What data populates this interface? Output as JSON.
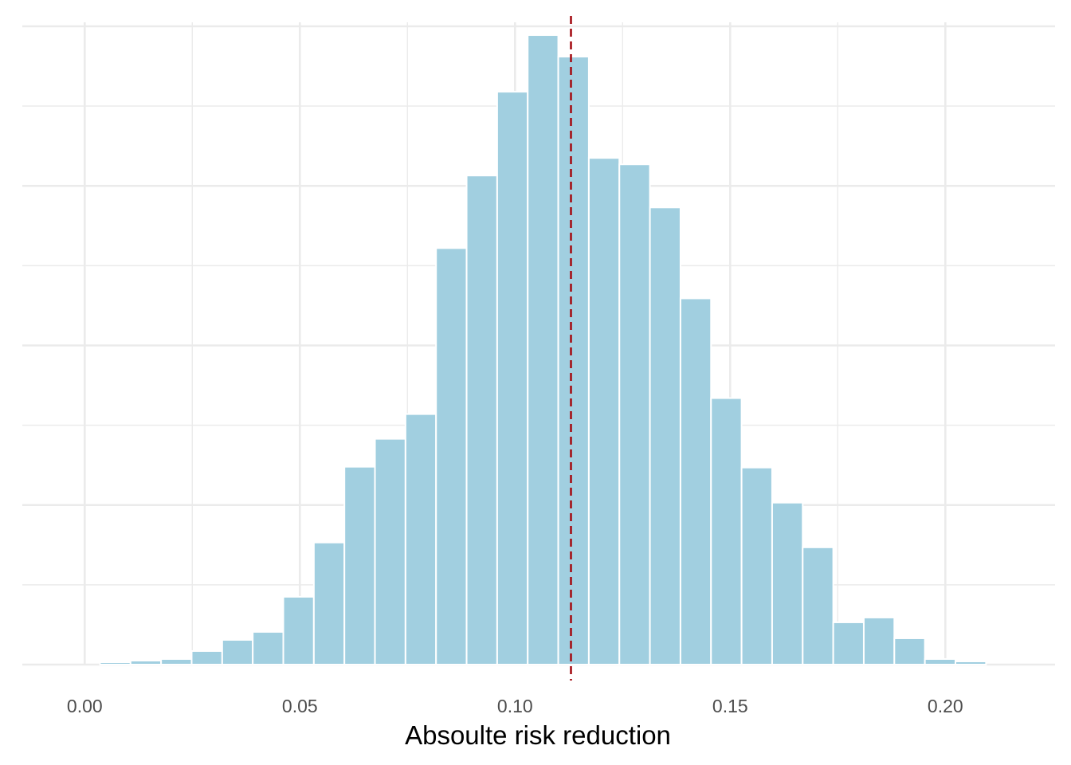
{
  "chart_data": {
    "type": "bar",
    "title": "",
    "xlabel": "Absoulte risk reduction",
    "ylabel": "",
    "grid": true,
    "xlim": [
      -0.0145,
      0.2255
    ],
    "ylim": [
      0,
      0.0805
    ],
    "x_ticks": [
      0.0,
      0.05,
      0.1,
      0.15,
      0.2
    ],
    "x_tick_labels": [
      "0.00",
      "0.05",
      "0.10",
      "0.15",
      "0.20"
    ],
    "y_ticks_major": [
      0,
      0.02,
      0.04,
      0.06,
      0.08
    ],
    "bin_width": 0.0071,
    "bin_centers": [
      0.0,
      0.0071,
      0.0142,
      0.0213,
      0.0284,
      0.0355,
      0.0426,
      0.0497,
      0.0568,
      0.0639,
      0.071,
      0.0781,
      0.0852,
      0.0923,
      0.0994,
      0.1065,
      0.1136,
      0.1207,
      0.1278,
      0.1349,
      0.142,
      0.1491,
      0.1562,
      0.1633,
      0.1704,
      0.1775,
      0.1846,
      0.1917,
      0.1988,
      0.2059
    ],
    "values": [
      0.0,
      0.0003,
      0.0005,
      0.0007,
      0.0017,
      0.0031,
      0.0041,
      0.0085,
      0.0153,
      0.0248,
      0.0283,
      0.0314,
      0.0522,
      0.0613,
      0.0718,
      0.0789,
      0.0762,
      0.0635,
      0.0627,
      0.0573,
      0.0459,
      0.0334,
      0.0247,
      0.0203,
      0.0147,
      0.0053,
      0.0059,
      0.0033,
      0.0007,
      0.0004
    ],
    "reference_line": {
      "x": 0.113,
      "style": "dashed",
      "color": "#a50f15"
    },
    "bar_color": "#a1cfe0",
    "bar_edge_color": "#ffffff",
    "grid_color": "#ebebeb",
    "background": "#ffffff"
  }
}
